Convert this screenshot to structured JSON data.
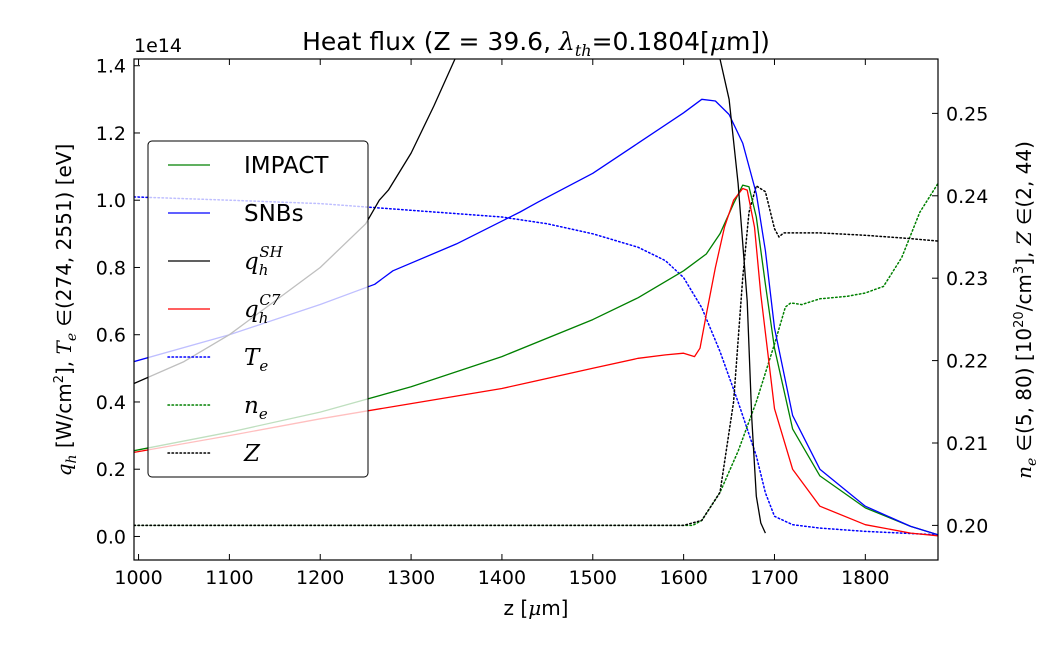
{
  "chart_data": {
    "type": "line",
    "title": "Heat flux (Z = 39.6, λth=0.1804[μm])",
    "title_parts": {
      "pre": "Heat flux (Z = 39.6, ",
      "lambda": "λ",
      "lambda_sub": "th",
      "post": "=0.1804[",
      "mu": "μ",
      "post2": "m])"
    },
    "xlabel": "z [μm]",
    "ylabel_left": "qh [W/cm2], Te ∈(274, 2551) [eV]",
    "ylabel_right": "ne ∈(5, 80) [1020/cm3], Z ∈(2, 44)",
    "offset_text": "1e14",
    "xlim": [
      995,
      1880
    ],
    "ylim_left": [
      -0.07,
      1.42
    ],
    "ylim_right": [
      0.1958,
      0.2566
    ],
    "x_ticks": [
      1000,
      1100,
      1200,
      1300,
      1400,
      1500,
      1600,
      1700,
      1800
    ],
    "y_ticks_left": [
      "0.0",
      "0.2",
      "0.4",
      "0.6",
      "0.8",
      "1.0",
      "1.2",
      "1.4"
    ],
    "y_ticks_right": [
      "0.20",
      "0.21",
      "0.22",
      "0.23",
      "0.24",
      "0.25"
    ],
    "legend_position": "center-left",
    "grid": false,
    "series": [
      {
        "name": "IMPACT",
        "axis": "left",
        "style": "solid",
        "color": "#008000",
        "x": [
          995,
          1100,
          1200,
          1300,
          1400,
          1500,
          1550,
          1600,
          1625,
          1640,
          1655,
          1665,
          1672,
          1680,
          1690,
          1700,
          1720,
          1750,
          1800,
          1850,
          1880
        ],
        "y": [
          0.255,
          0.31,
          0.37,
          0.445,
          0.535,
          0.645,
          0.71,
          0.79,
          0.84,
          0.9,
          0.99,
          1.045,
          1.04,
          0.95,
          0.75,
          0.56,
          0.32,
          0.18,
          0.085,
          0.03,
          0.005
        ]
      },
      {
        "name": "SNBs",
        "axis": "left",
        "style": "solid",
        "color": "#0000ff",
        "x": [
          995,
          1100,
          1200,
          1260,
          1280,
          1350,
          1420,
          1430,
          1440,
          1500,
          1550,
          1600,
          1620,
          1635,
          1650,
          1665,
          1680,
          1690,
          1700,
          1720,
          1750,
          1800,
          1850,
          1880
        ],
        "y": [
          0.52,
          0.6,
          0.69,
          0.75,
          0.79,
          0.87,
          0.965,
          0.98,
          0.995,
          1.08,
          1.17,
          1.26,
          1.3,
          1.295,
          1.255,
          1.17,
          1.02,
          0.85,
          0.62,
          0.36,
          0.2,
          0.09,
          0.03,
          0.005
        ]
      },
      {
        "name": "qhSH",
        "legend_label": "q",
        "legend_sub": "h",
        "legend_sup": "SH",
        "axis": "left",
        "style": "solid",
        "color": "#000000",
        "x": [
          995,
          1050,
          1100,
          1150,
          1200,
          1250,
          1265,
          1275,
          1300,
          1325,
          1350,
          1700,
          1690,
          1685,
          1680,
          1675,
          1670,
          1660,
          1650,
          1640,
          1630,
          1620
        ],
        "y": [
          0.455,
          0.52,
          0.6,
          0.7,
          0.8,
          0.93,
          1.0,
          1.03,
          1.14,
          1.28,
          1.43,
          null,
          0.01,
          0.04,
          0.12,
          0.35,
          0.7,
          1.05,
          1.3,
          1.42,
          1.5,
          1.6
        ]
      },
      {
        "name": "qhC7",
        "legend_label": "q",
        "legend_sub": "h",
        "legend_sup": "C7",
        "axis": "left",
        "style": "solid",
        "color": "#ff0000",
        "x": [
          995,
          1100,
          1200,
          1300,
          1400,
          1500,
          1550,
          1580,
          1600,
          1612,
          1618,
          1625,
          1635,
          1645,
          1655,
          1665,
          1670,
          1678,
          1685,
          1700,
          1720,
          1750,
          1800,
          1850,
          1880
        ],
        "y": [
          0.25,
          0.3,
          0.35,
          0.395,
          0.44,
          0.5,
          0.53,
          0.54,
          0.545,
          0.535,
          0.56,
          0.66,
          0.8,
          0.92,
          1.0,
          1.035,
          1.03,
          0.92,
          0.72,
          0.38,
          0.2,
          0.09,
          0.035,
          0.01,
          0.002
        ]
      },
      {
        "name": "Te",
        "axis": "left",
        "style": "dotted",
        "color": "#0000ff",
        "x": [
          995,
          1100,
          1200,
          1300,
          1400,
          1450,
          1500,
          1550,
          1580,
          1600,
          1620,
          1640,
          1660,
          1680,
          1690,
          1700,
          1720,
          1750,
          1800,
          1880
        ],
        "y": [
          1.01,
          1.0,
          0.99,
          0.97,
          0.95,
          0.93,
          0.9,
          0.86,
          0.82,
          0.77,
          0.68,
          0.55,
          0.4,
          0.24,
          0.13,
          0.06,
          0.035,
          0.025,
          0.015,
          0.005
        ]
      },
      {
        "name": "ne",
        "axis": "right",
        "style": "dotted",
        "color": "#008000",
        "x": [
          995,
          1600,
          1610,
          1620,
          1640,
          1660,
          1680,
          1700,
          1712,
          1718,
          1730,
          1750,
          1780,
          1800,
          1820,
          1840,
          1860,
          1880
        ],
        "y": [
          0.2,
          0.2,
          0.2,
          0.2006,
          0.204,
          0.209,
          0.215,
          0.222,
          0.2265,
          0.227,
          0.2268,
          0.2275,
          0.2278,
          0.2282,
          0.229,
          0.2325,
          0.238,
          0.2415
        ]
      },
      {
        "name": "Z",
        "axis": "right",
        "style": "dotted",
        "color": "#000000",
        "x": [
          995,
          1600,
          1620,
          1640,
          1655,
          1665,
          1672,
          1680,
          1690,
          1700,
          1705,
          1710,
          1750,
          1800,
          1850,
          1880
        ],
        "y": [
          0.2,
          0.2,
          0.2006,
          0.204,
          0.215,
          0.23,
          0.238,
          0.2412,
          0.2405,
          0.236,
          0.235,
          0.2355,
          0.2355,
          0.2352,
          0.2348,
          0.2345
        ]
      }
    ]
  }
}
